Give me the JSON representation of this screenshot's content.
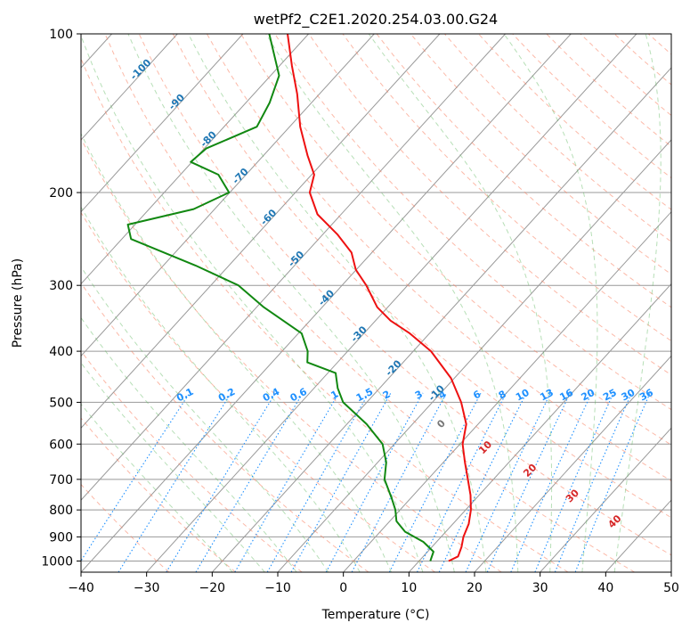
{
  "chart_data": {
    "type": "line",
    "subtype": "skew-t",
    "title": "wetPf2_C2E1.2020.254.03.00.G24",
    "xlabel": "Temperature (°C)",
    "ylabel": "Pressure (hPa)",
    "xlim": [
      -40,
      50
    ],
    "ylim": [
      1050,
      100
    ],
    "yscale": "log",
    "x_ticks": [
      -40,
      -30,
      -20,
      -10,
      0,
      10,
      20,
      30,
      40,
      50
    ],
    "x_tick_labels": [
      "−40",
      "−30",
      "−20",
      "−10",
      "0",
      "10",
      "20",
      "30",
      "40",
      "50"
    ],
    "y_ticks": [
      1000,
      900,
      800,
      700,
      600,
      500,
      400,
      300,
      200,
      100
    ],
    "y_tick_labels": [
      "1000",
      "900",
      "800",
      "700",
      "600",
      "500",
      "400",
      "300",
      "200",
      "100"
    ],
    "grid": true,
    "series": [
      {
        "role": "temperature",
        "color": "#ee1111",
        "points": [
          {
            "p": 1000,
            "t": 14.5
          },
          {
            "p": 980,
            "t": 15.3
          },
          {
            "p": 940,
            "t": 14.5
          },
          {
            "p": 900,
            "t": 13.4
          },
          {
            "p": 850,
            "t": 12.4
          },
          {
            "p": 800,
            "t": 10.8
          },
          {
            "p": 750,
            "t": 8.7
          },
          {
            "p": 700,
            "t": 6.1
          },
          {
            "p": 650,
            "t": 3.3
          },
          {
            "p": 600,
            "t": 0.4
          },
          {
            "p": 550,
            "t": -1.8
          },
          {
            "p": 500,
            "t": -5.6
          },
          {
            "p": 450,
            "t": -10.5
          },
          {
            "p": 400,
            "t": -17.3
          },
          {
            "p": 370,
            "t": -23.0
          },
          {
            "p": 350,
            "t": -27.7
          },
          {
            "p": 330,
            "t": -31.6
          },
          {
            "p": 300,
            "t": -36.3
          },
          {
            "p": 280,
            "t": -40.1
          },
          {
            "p": 260,
            "t": -43.1
          },
          {
            "p": 240,
            "t": -47.8
          },
          {
            "p": 220,
            "t": -53.6
          },
          {
            "p": 200,
            "t": -57.8
          },
          {
            "p": 185,
            "t": -59.6
          },
          {
            "p": 170,
            "t": -63.3
          },
          {
            "p": 150,
            "t": -68.4
          },
          {
            "p": 130,
            "t": -73.4
          },
          {
            "p": 115,
            "t": -78.1
          },
          {
            "p": 100,
            "t": -83.2
          }
        ]
      },
      {
        "role": "dewpoint",
        "color": "#118811",
        "points": [
          {
            "p": 1000,
            "t": 11.7
          },
          {
            "p": 960,
            "t": 10.9
          },
          {
            "p": 920,
            "t": 8.0
          },
          {
            "p": 880,
            "t": 3.8
          },
          {
            "p": 840,
            "t": 1.0
          },
          {
            "p": 800,
            "t": -0.7
          },
          {
            "p": 760,
            "t": -2.9
          },
          {
            "p": 700,
            "t": -6.6
          },
          {
            "p": 650,
            "t": -8.7
          },
          {
            "p": 600,
            "t": -11.8
          },
          {
            "p": 550,
            "t": -17.0
          },
          {
            "p": 500,
            "t": -23.6
          },
          {
            "p": 470,
            "t": -26.4
          },
          {
            "p": 440,
            "t": -28.8
          },
          {
            "p": 420,
            "t": -34.6
          },
          {
            "p": 400,
            "t": -36.1
          },
          {
            "p": 370,
            "t": -39.5
          },
          {
            "p": 330,
            "t": -48.9
          },
          {
            "p": 300,
            "t": -55.8
          },
          {
            "p": 275,
            "t": -65.1
          },
          {
            "p": 245,
            "t": -78.6
          },
          {
            "p": 230,
            "t": -81.1
          },
          {
            "p": 215,
            "t": -73.2
          },
          {
            "p": 200,
            "t": -70.1
          },
          {
            "p": 185,
            "t": -74.2
          },
          {
            "p": 175,
            "t": -80.2
          },
          {
            "p": 165,
            "t": -79.7
          },
          {
            "p": 150,
            "t": -75.0
          },
          {
            "p": 135,
            "t": -76.4
          },
          {
            "p": 120,
            "t": -78.7
          },
          {
            "p": 100,
            "t": -86.0
          }
        ]
      }
    ],
    "isotherm_labels": [
      {
        "text": "-100",
        "t": -100,
        "p": 118
      },
      {
        "text": "-90",
        "t": -90,
        "p": 136
      },
      {
        "text": "-80",
        "t": -80,
        "p": 160
      },
      {
        "text": "-70",
        "t": -70,
        "p": 188
      },
      {
        "text": "-60",
        "t": -60,
        "p": 225
      },
      {
        "text": "-50",
        "t": -50,
        "p": 270
      },
      {
        "text": "-40",
        "t": -40,
        "p": 320
      },
      {
        "text": "-30",
        "t": -30,
        "p": 375
      },
      {
        "text": "-20",
        "t": -20,
        "p": 435
      },
      {
        "text": "-10",
        "t": -10,
        "p": 485
      }
    ],
    "mixing_ratio_labels": [
      "0.1",
      "0.2",
      "0.4",
      "0.6",
      "1",
      "1.5",
      "2",
      "3",
      "4",
      "6",
      "8",
      "10",
      "13",
      "16",
      "20",
      "25",
      "30",
      "36"
    ],
    "moist_adiabat_labels": [
      "0",
      "10",
      "20",
      "30",
      "40"
    ],
    "colors": {
      "isotherm_label": "#1f77b4",
      "mixing_ratio": "#1e90ff",
      "dry_adiabat": "#fa8060",
      "moist_adiabat": "#5fb75f",
      "moist_label": "#d62728",
      "zero_label": "#777777",
      "grid": "#999999"
    }
  }
}
